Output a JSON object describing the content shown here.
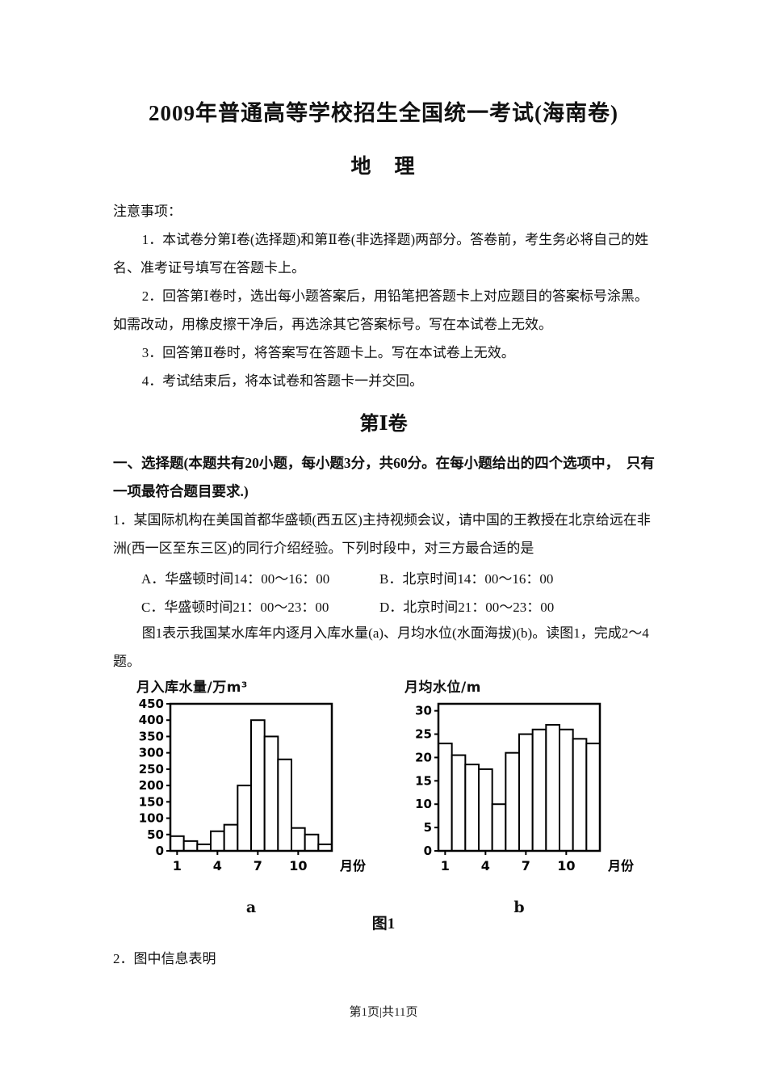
{
  "doc": {
    "title": "2009年普通高等学校招生全国统一考试(海南卷)",
    "subject": "地　理",
    "notice_heading": "注意事项：",
    "notices": [
      "1．本试卷分第Ⅰ卷(选择题)和第Ⅱ卷(非选择题)两部分。答卷前，考生务必将自己的姓名、准考证号填写在答题卡上。",
      "2．回答第Ⅰ卷时，选出每小题答案后，用铅笔把答题卡上对应题目的答案标号涂黑。如需改动，用橡皮擦干净后，再选涂其它答案标号。写在本试卷上无效。",
      "3．回答第Ⅱ卷时，将答案写在答题卡上。写在本试卷上无效。",
      "4．考试结束后，将本试卷和答题卡一并交回。"
    ],
    "section_heading": "第Ⅰ卷",
    "part1_intro": "一、选择题(本题共有20小题，每小题3分，共60分。在每小题给出的四个选项中，　只有一项最符合题目要求.)",
    "q1_text": "1．某国际机构在美国首都华盛顿(西五区)主持视频会议，请中国的王教授在北京给远在非洲(西一区至东三区)的同行介绍经验。下列时段中，对三方最合适的是",
    "q1_options": [
      "A．华盛顿时间14：00～16：00",
      "B．北京时间14：00～16：00",
      "C．华盛顿时间21：00～23：00",
      "D．北京时间21：00～23：00"
    ],
    "fig_intro": "图1表示我国某水库年内逐月入库水量(a)、月均水位(水面海拔)(b)。读图1，完成2～4题。",
    "figure_caption": "图1",
    "q2_lead": "2．图中信息表明",
    "footer": "第1页|共11页"
  },
  "chart_data": [
    {
      "type": "bar",
      "title": "月入库水量/万m³",
      "sublabel": "a",
      "categories": [
        1,
        2,
        3,
        4,
        5,
        6,
        7,
        8,
        9,
        10,
        11,
        12
      ],
      "values": [
        45,
        30,
        20,
        60,
        80,
        200,
        400,
        350,
        280,
        70,
        50,
        20
      ],
      "xlabel": "月份",
      "ylim": [
        0,
        450
      ],
      "ytick_step": 50,
      "ymax_plot": 450,
      "xticks": [
        1,
        4,
        7,
        10
      ],
      "bar_fill": "#ffffff",
      "line_color": "#000000"
    },
    {
      "type": "bar",
      "title": "月均水位/m",
      "sublabel": "b",
      "categories": [
        1,
        2,
        3,
        4,
        5,
        6,
        7,
        8,
        9,
        10,
        11,
        12
      ],
      "values": [
        23,
        20.5,
        18.5,
        17.5,
        10,
        21,
        25,
        26,
        27,
        26,
        24,
        23
      ],
      "xlabel": "月份",
      "ylim": [
        0,
        30
      ],
      "ytick_step": 5,
      "ymax_plot": 31.5,
      "xticks": [
        1,
        4,
        7,
        10
      ],
      "bar_fill": "#ffffff",
      "line_color": "#000000"
    }
  ]
}
